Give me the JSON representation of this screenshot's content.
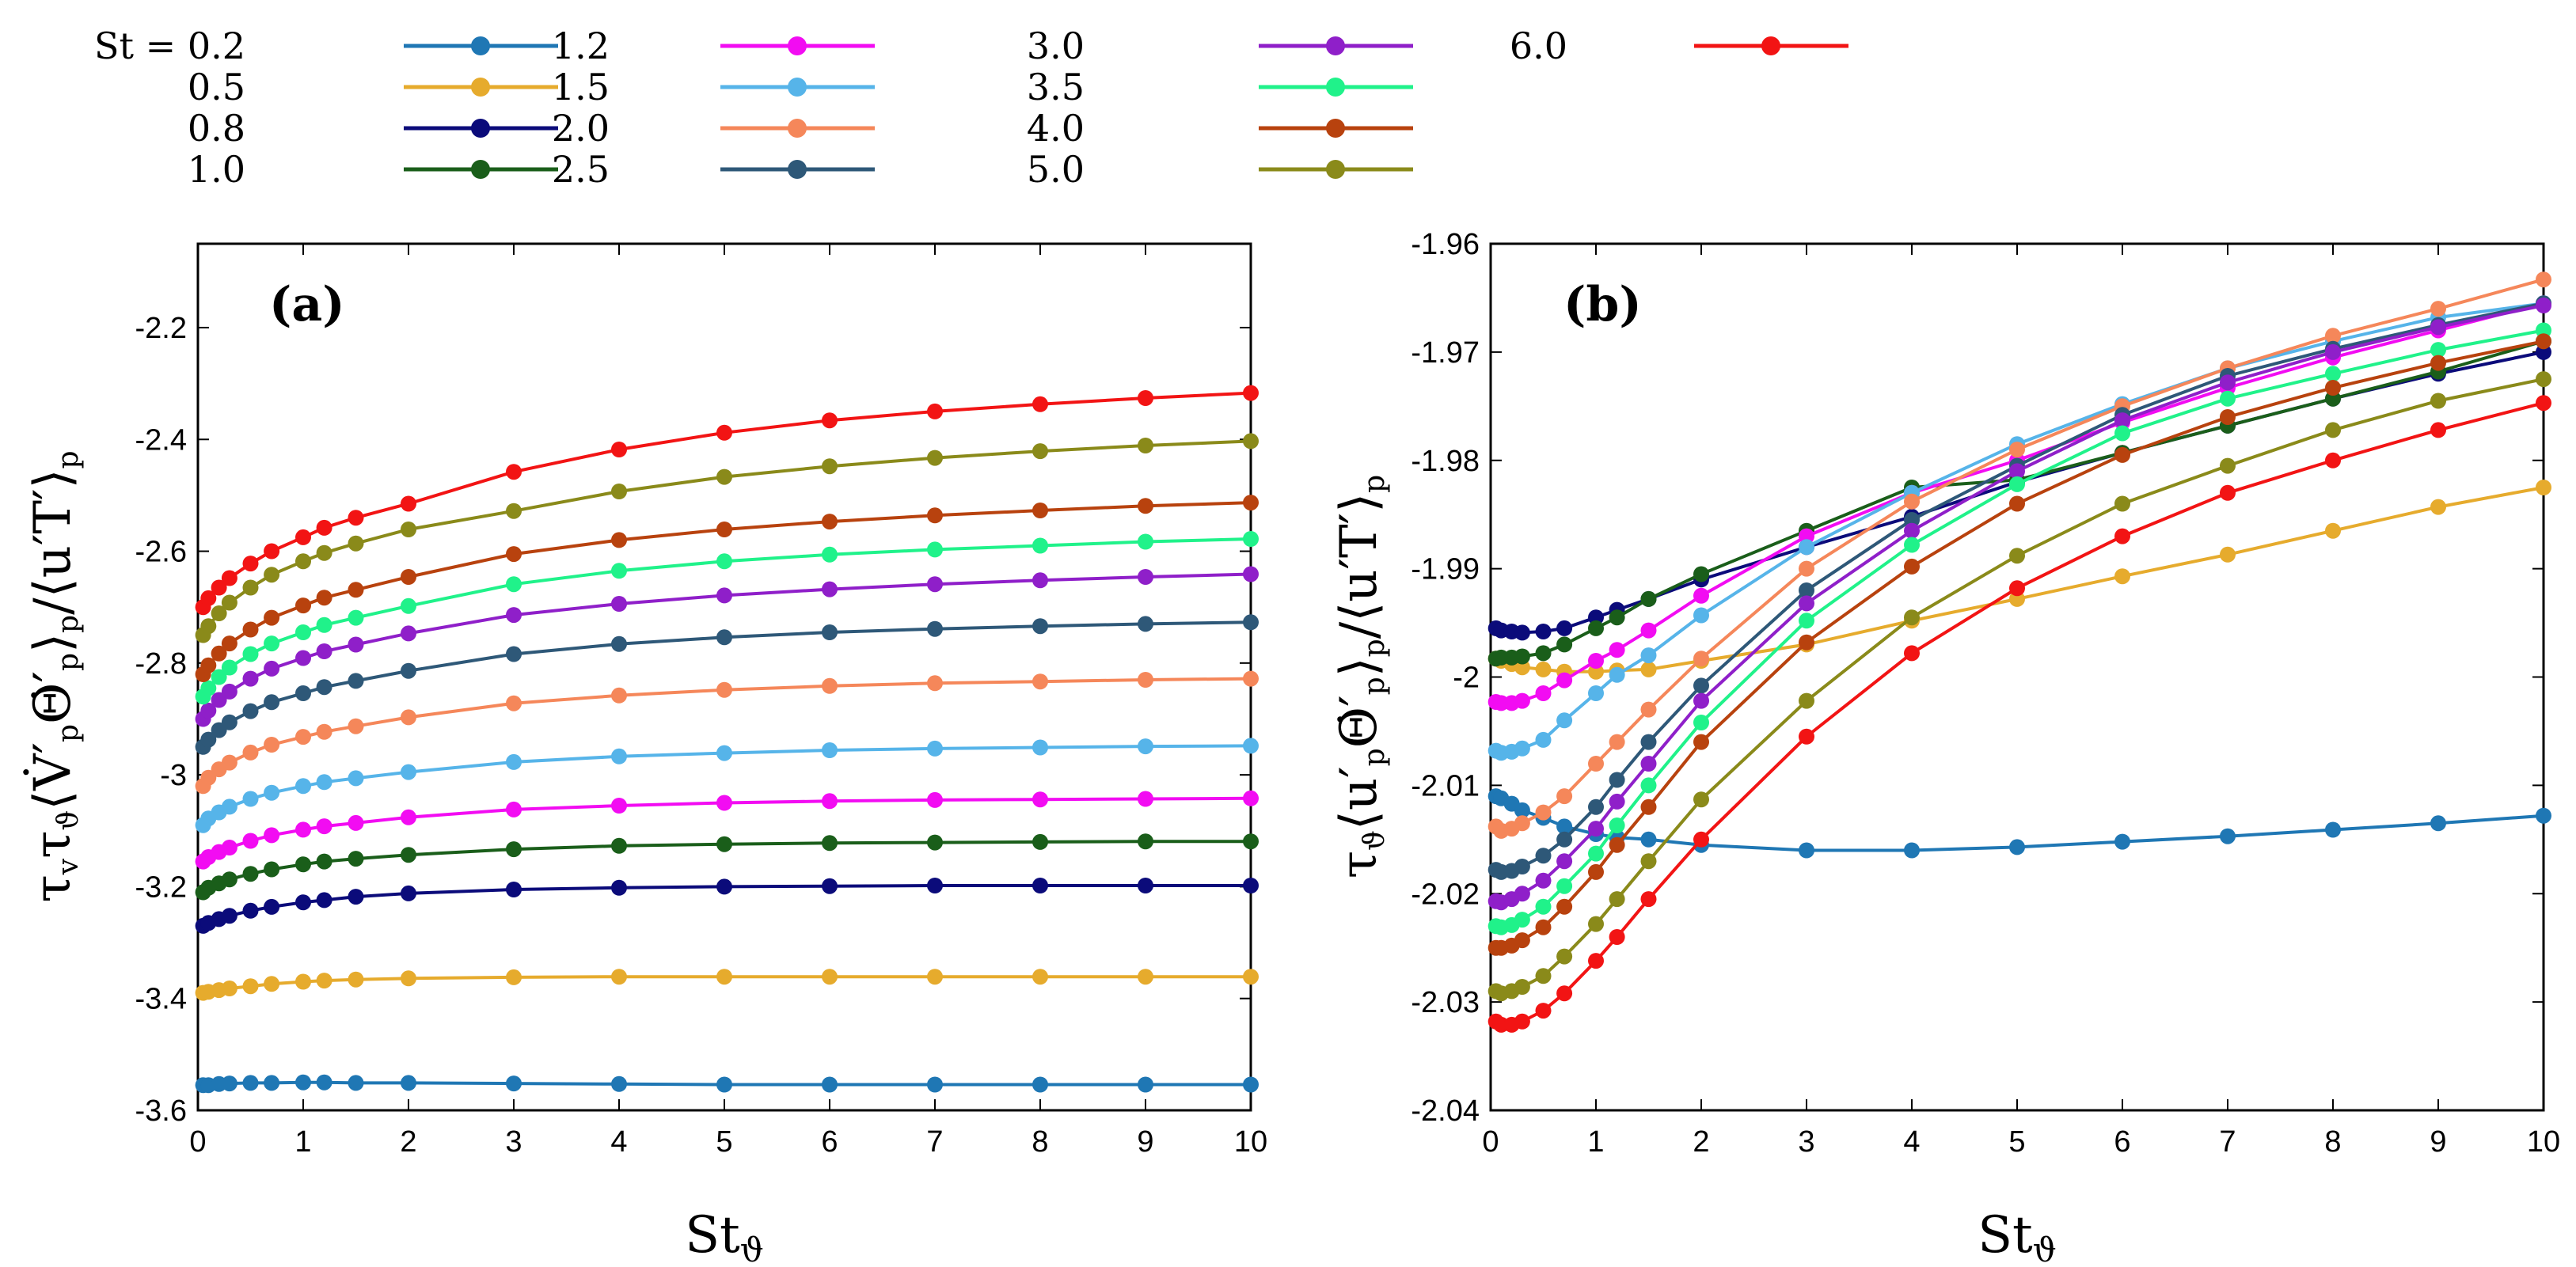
{
  "legend": {
    "items": [
      {
        "label": "St = 0.2",
        "color": "#1f77b4"
      },
      {
        "label": "0.5",
        "color": "#e6ab2d"
      },
      {
        "label": "0.8",
        "color": "#0b0b7a"
      },
      {
        "label": "1.0",
        "color": "#1a5e1a"
      },
      {
        "label": "1.2",
        "color": "#f20cf2"
      },
      {
        "label": "1.5",
        "color": "#56b4e9"
      },
      {
        "label": "2.0",
        "color": "#f5875a"
      },
      {
        "label": "2.5",
        "color": "#2e5878"
      },
      {
        "label": "3.0",
        "color": "#8f1fc9"
      },
      {
        "label": "3.5",
        "color": "#20f28a"
      },
      {
        "label": "4.0",
        "color": "#b8420e"
      },
      {
        "label": "5.0",
        "color": "#8a8a1a"
      },
      {
        "label": "6.0",
        "color": "#f21414"
      }
    ]
  },
  "chart_data": [
    {
      "type": "line",
      "panel_label": "(a)",
      "title": "",
      "xlabel": "St_ϑ",
      "ylabel": "τ_v τ_ϑ ⟨V̇′_p Θ̇′_p⟩_p / ⟨u′T′⟩_p",
      "xlim": [
        0,
        10
      ],
      "ylim": [
        -3.6,
        -2.05
      ],
      "xticks": [
        "0",
        "1",
        "2",
        "3",
        "4",
        "5",
        "6",
        "7",
        "8",
        "9",
        "10"
      ],
      "yticks": [
        "-3.6",
        "-3.4",
        "-3.2",
        "-3",
        "-2.8",
        "-2.6",
        "-2.4",
        "-2.2"
      ],
      "x": [
        0.05,
        0.1,
        0.2,
        0.3,
        0.5,
        0.7,
        1.0,
        1.2,
        1.5,
        2,
        3,
        4,
        5,
        6,
        7,
        8,
        9,
        10
      ],
      "series": [
        {
          "name": "St = 0.2",
          "values": [
            -3.555,
            -3.555,
            -3.553,
            -3.552,
            -3.551,
            -3.551,
            -3.55,
            -3.55,
            -3.551,
            -3.551,
            -3.552,
            -3.553,
            -3.554,
            -3.554,
            -3.554,
            -3.554,
            -3.554,
            -3.554
          ]
        },
        {
          "name": "0.5",
          "values": [
            -3.39,
            -3.388,
            -3.385,
            -3.382,
            -3.378,
            -3.374,
            -3.37,
            -3.368,
            -3.366,
            -3.364,
            -3.362,
            -3.361,
            -3.361,
            -3.361,
            -3.361,
            -3.361,
            -3.361,
            -3.361
          ]
        },
        {
          "name": "0.8",
          "values": [
            -3.27,
            -3.265,
            -3.258,
            -3.252,
            -3.243,
            -3.236,
            -3.228,
            -3.224,
            -3.218,
            -3.212,
            -3.205,
            -3.202,
            -3.2,
            -3.199,
            -3.198,
            -3.198,
            -3.198,
            -3.198
          ]
        },
        {
          "name": "1.0",
          "values": [
            -3.21,
            -3.202,
            -3.194,
            -3.187,
            -3.177,
            -3.169,
            -3.16,
            -3.155,
            -3.15,
            -3.143,
            -3.133,
            -3.127,
            -3.124,
            -3.122,
            -3.121,
            -3.12,
            -3.119,
            -3.119
          ]
        },
        {
          "name": "1.2",
          "values": [
            -3.155,
            -3.147,
            -3.138,
            -3.13,
            -3.118,
            -3.108,
            -3.098,
            -3.092,
            -3.086,
            -3.076,
            -3.062,
            -3.055,
            -3.05,
            -3.047,
            -3.045,
            -3.044,
            -3.043,
            -3.042
          ]
        },
        {
          "name": "1.5",
          "values": [
            -3.09,
            -3.078,
            -3.067,
            -3.057,
            -3.043,
            -3.032,
            -3.02,
            -3.013,
            -3.006,
            -2.995,
            -2.977,
            -2.967,
            -2.961,
            -2.956,
            -2.953,
            -2.951,
            -2.949,
            -2.948
          ]
        },
        {
          "name": "2.0",
          "values": [
            -3.02,
            -3.005,
            -2.99,
            -2.978,
            -2.96,
            -2.946,
            -2.932,
            -2.923,
            -2.913,
            -2.897,
            -2.872,
            -2.858,
            -2.848,
            -2.841,
            -2.836,
            -2.833,
            -2.83,
            -2.828
          ]
        },
        {
          "name": "2.5",
          "values": [
            -2.95,
            -2.937,
            -2.92,
            -2.906,
            -2.886,
            -2.87,
            -2.854,
            -2.843,
            -2.832,
            -2.814,
            -2.784,
            -2.766,
            -2.754,
            -2.745,
            -2.739,
            -2.734,
            -2.73,
            -2.727
          ]
        },
        {
          "name": "3.0",
          "values": [
            -2.9,
            -2.885,
            -2.866,
            -2.851,
            -2.828,
            -2.81,
            -2.791,
            -2.779,
            -2.767,
            -2.747,
            -2.714,
            -2.694,
            -2.679,
            -2.668,
            -2.659,
            -2.652,
            -2.646,
            -2.641
          ]
        },
        {
          "name": "3.5",
          "values": [
            -2.86,
            -2.845,
            -2.825,
            -2.808,
            -2.784,
            -2.765,
            -2.745,
            -2.732,
            -2.719,
            -2.698,
            -2.659,
            -2.635,
            -2.618,
            -2.606,
            -2.597,
            -2.59,
            -2.583,
            -2.578
          ]
        },
        {
          "name": "4.0",
          "values": [
            -2.82,
            -2.804,
            -2.783,
            -2.765,
            -2.74,
            -2.719,
            -2.697,
            -2.683,
            -2.669,
            -2.646,
            -2.605,
            -2.58,
            -2.561,
            -2.547,
            -2.536,
            -2.527,
            -2.519,
            -2.513
          ]
        },
        {
          "name": "5.0",
          "values": [
            -2.75,
            -2.734,
            -2.711,
            -2.692,
            -2.665,
            -2.642,
            -2.618,
            -2.603,
            -2.586,
            -2.561,
            -2.528,
            -2.493,
            -2.467,
            -2.448,
            -2.433,
            -2.421,
            -2.411,
            -2.403
          ]
        },
        {
          "name": "6.0",
          "values": [
            -2.7,
            -2.684,
            -2.665,
            -2.648,
            -2.622,
            -2.6,
            -2.575,
            -2.558,
            -2.54,
            -2.515,
            -2.458,
            -2.418,
            -2.388,
            -2.366,
            -2.35,
            -2.337,
            -2.326,
            -2.317
          ]
        }
      ]
    },
    {
      "type": "line",
      "panel_label": "(b)",
      "title": "",
      "xlabel": "St_ϑ",
      "ylabel": "τ_ϑ ⟨u′_p Θ̇′_p⟩_p / ⟨u′T′⟩_p",
      "xlim": [
        0,
        10
      ],
      "ylim": [
        -2.04,
        -1.96
      ],
      "xticks": [
        "0",
        "1",
        "2",
        "3",
        "4",
        "5",
        "6",
        "7",
        "8",
        "9",
        "10"
      ],
      "yticks": [
        "-2.04",
        "-2.03",
        "-2.02",
        "-2.01",
        "-2",
        "-1.99",
        "-1.98",
        "-1.97",
        "-1.96"
      ],
      "x": [
        0.05,
        0.1,
        0.2,
        0.3,
        0.5,
        0.7,
        1.0,
        1.2,
        1.5,
        2,
        3,
        4,
        5,
        6,
        7,
        8,
        9,
        10
      ],
      "series": [
        {
          "name": "St = 0.2",
          "values": [
            -2.011,
            -2.0112,
            -2.0117,
            -2.0123,
            -2.013,
            -2.0138,
            -2.0145,
            -2.0148,
            -2.015,
            -2.0155,
            -2.016,
            -2.016,
            -2.0157,
            -2.0152,
            -2.0147,
            -2.0141,
            -2.0135,
            -2.0128
          ]
        },
        {
          "name": "0.5",
          "values": [
            -1.9983,
            -1.9985,
            -1.9988,
            -1.9991,
            -1.9993,
            -1.9995,
            -1.9995,
            -1.9994,
            -1.9993,
            -1.9985,
            -1.997,
            -1.9948,
            -1.9928,
            -1.9907,
            -1.9887,
            -1.9865,
            -1.9843,
            -1.9825
          ]
        },
        {
          "name": "0.8",
          "values": [
            -1.9955,
            -1.9957,
            -1.9958,
            -1.9959,
            -1.9958,
            -1.9955,
            -1.9945,
            -1.9938,
            -1.9928,
            -1.991,
            -1.988,
            -1.9852,
            -1.982,
            -1.9793,
            -1.9768,
            -1.9743,
            -1.972,
            -1.97
          ]
        },
        {
          "name": "1.0",
          "values": [
            -1.9983,
            -1.9982,
            -1.9982,
            -1.9981,
            -1.9978,
            -1.997,
            -1.9955,
            -1.9945,
            -1.9928,
            -1.9905,
            -1.9865,
            -1.9825,
            -1.9818,
            -1.9793,
            -1.9768,
            -1.9743,
            -1.9718,
            -1.969
          ]
        },
        {
          "name": "1.2",
          "values": [
            -2.0023,
            -2.0024,
            -2.0024,
            -2.0022,
            -2.0015,
            -2.0003,
            -1.9985,
            -1.9975,
            -1.9957,
            -1.9925,
            -1.987,
            -1.983,
            -1.98,
            -1.9765,
            -1.9733,
            -1.9705,
            -1.968,
            -1.9655
          ]
        },
        {
          "name": "1.5",
          "values": [
            -2.0068,
            -2.007,
            -2.0069,
            -2.0066,
            -2.0058,
            -2.004,
            -2.0015,
            -1.9998,
            -1.998,
            -1.9943,
            -1.988,
            -1.983,
            -1.9785,
            -1.9748,
            -1.9715,
            -1.969,
            -1.9668,
            -1.9655
          ]
        },
        {
          "name": "2.0",
          "values": [
            -2.0138,
            -2.0142,
            -2.014,
            -2.0135,
            -2.0125,
            -2.011,
            -2.008,
            -2.006,
            -2.003,
            -1.9983,
            -1.99,
            -1.9838,
            -1.979,
            -1.975,
            -1.9715,
            -1.9685,
            -1.966,
            -1.9633
          ]
        },
        {
          "name": "2.5",
          "values": [
            -2.0178,
            -2.018,
            -2.0179,
            -2.0175,
            -2.0165,
            -2.015,
            -2.012,
            -2.0095,
            -2.006,
            -2.0008,
            -1.992,
            -1.9855,
            -1.9805,
            -1.9758,
            -1.9722,
            -1.9697,
            -1.9675,
            -1.9655
          ]
        },
        {
          "name": "3.0",
          "values": [
            -2.0207,
            -2.0208,
            -2.0205,
            -2.02,
            -2.0188,
            -2.017,
            -2.014,
            -2.0115,
            -2.008,
            -2.0022,
            -1.9932,
            -1.9865,
            -1.981,
            -1.9763,
            -1.9728,
            -1.97,
            -1.9677,
            -1.9657
          ]
        },
        {
          "name": "3.5",
          "values": [
            -2.023,
            -2.0231,
            -2.0229,
            -2.0224,
            -2.0212,
            -2.0193,
            -2.0163,
            -2.0137,
            -2.01,
            -2.0042,
            -1.9948,
            -1.9878,
            -1.9822,
            -1.9775,
            -1.9743,
            -1.972,
            -1.9698,
            -1.968
          ]
        },
        {
          "name": "4.0",
          "values": [
            -2.025,
            -2.025,
            -2.0248,
            -2.0243,
            -2.0231,
            -2.0212,
            -2.018,
            -2.0155,
            -2.012,
            -2.006,
            -1.9968,
            -1.9898,
            -1.984,
            -1.9795,
            -1.976,
            -1.9733,
            -1.971,
            -1.969
          ]
        },
        {
          "name": "5.0",
          "values": [
            -2.029,
            -2.0292,
            -2.029,
            -2.0286,
            -2.0276,
            -2.0258,
            -2.0228,
            -2.0205,
            -2.017,
            -2.0113,
            -2.0022,
            -1.9945,
            -1.9888,
            -1.984,
            -1.9805,
            -1.9772,
            -1.9745,
            -1.9725
          ]
        },
        {
          "name": "6.0",
          "values": [
            -2.0318,
            -2.0321,
            -2.0321,
            -2.0318,
            -2.0308,
            -2.0292,
            -2.0262,
            -2.024,
            -2.0205,
            -2.015,
            -2.0055,
            -1.9978,
            -1.9918,
            -1.987,
            -1.983,
            -1.98,
            -1.9772,
            -1.9747
          ]
        }
      ]
    }
  ]
}
